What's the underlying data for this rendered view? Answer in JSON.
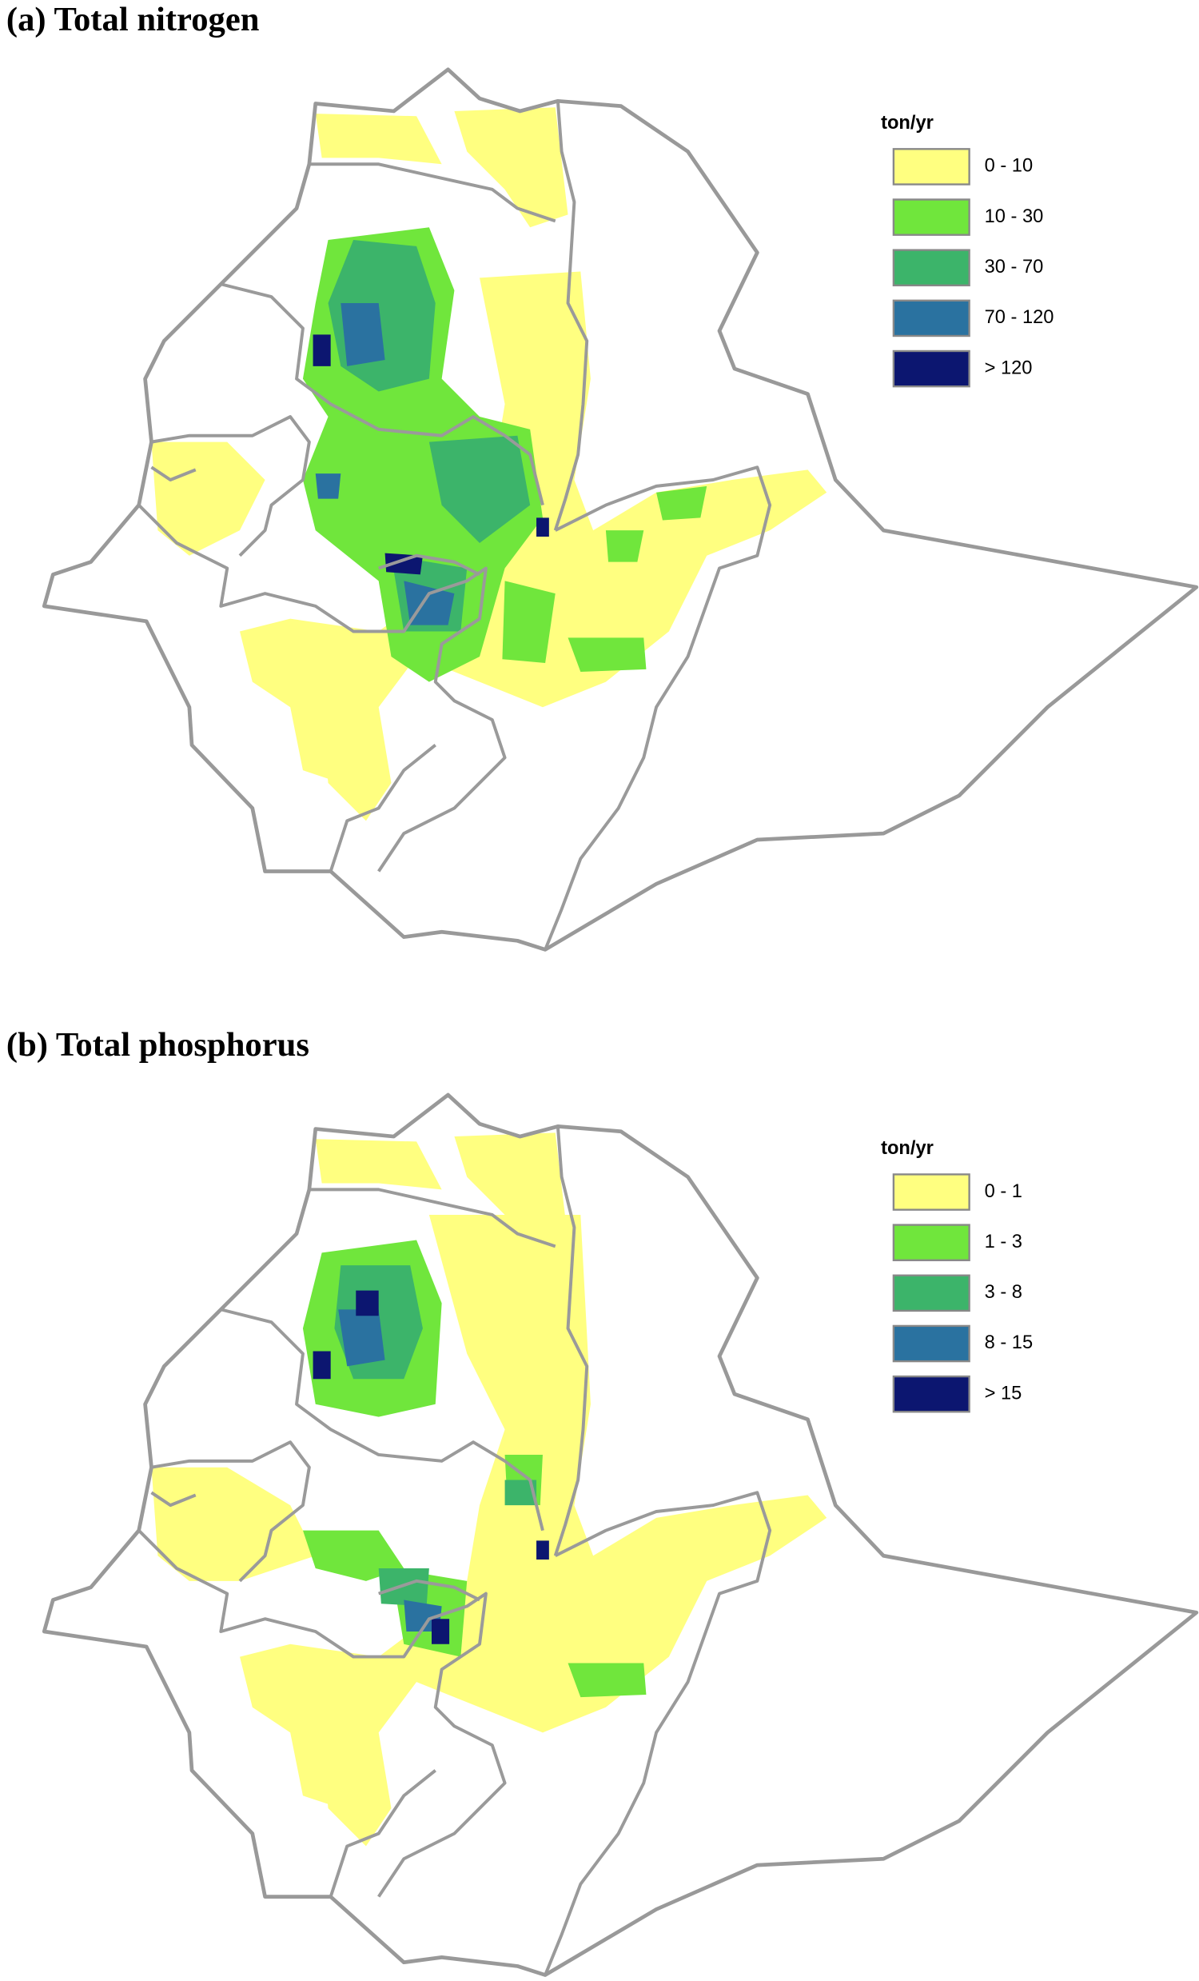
{
  "panels": [
    {
      "title": "(a) Total nitrogen",
      "legend": {
        "title": "ton/yr",
        "items": [
          {
            "label": "0 - 10",
            "color": "#ffff80"
          },
          {
            "label": "10 - 30",
            "color": "#70e63c"
          },
          {
            "label": "30 - 70",
            "color": "#3cb46a"
          },
          {
            "label": "70 - 120",
            "color": "#2a72a0"
          },
          {
            "label": "> 120",
            "color": "#0c1670"
          }
        ]
      }
    },
    {
      "title": "(b) Total phosphorus",
      "legend": {
        "title": "ton/yr",
        "items": [
          {
            "label": "0 - 1",
            "color": "#ffff80"
          },
          {
            "label": "1 - 3",
            "color": "#70e63c"
          },
          {
            "label": "3 - 8",
            "color": "#3cb46a"
          },
          {
            "label": "8 - 15",
            "color": "#2a72a0"
          },
          {
            "label": "> 15",
            "color": "#0c1670"
          }
        ]
      }
    }
  ]
}
